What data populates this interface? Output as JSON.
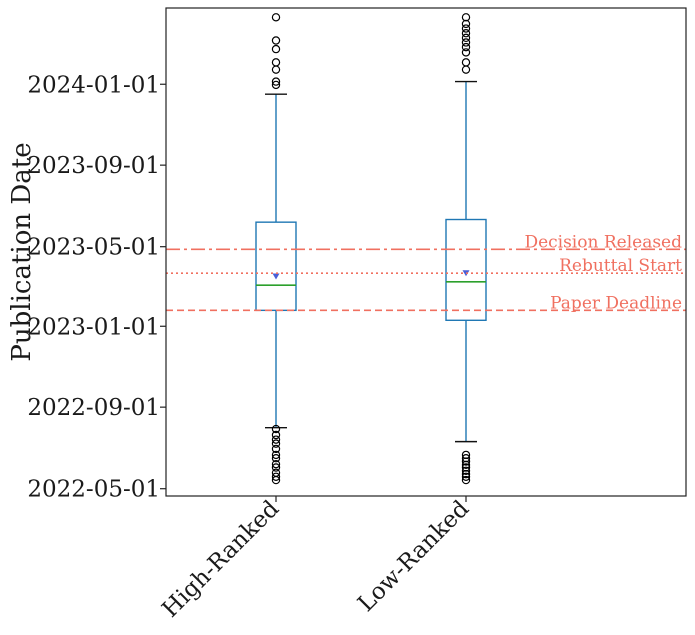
{
  "chart_data": {
    "type": "box",
    "ylabel": "Publication Date",
    "y_ticks": [
      "2022-05-01",
      "2022-09-01",
      "2023-01-01",
      "2023-05-01",
      "2023-09-01",
      "2024-01-01"
    ],
    "ylim": [
      "2022-04-20",
      "2024-04-25"
    ],
    "categories": [
      "High-Ranked",
      "Low-Ranked"
    ],
    "boxes": [
      {
        "category": "High-Ranked",
        "whisker_low": "2022-08-01",
        "q1": "2023-01-25",
        "median": "2023-03-04",
        "mean": "2023-03-17",
        "q3": "2023-06-07",
        "whisker_high": "2023-12-17",
        "outliers_low": [
          "2022-05-14",
          "2022-05-19",
          "2022-05-25",
          "2022-06-02",
          "2022-06-07",
          "2022-06-16",
          "2022-06-21",
          "2022-06-30",
          "2022-07-08",
          "2022-07-14",
          "2022-07-21",
          "2022-07-30"
        ],
        "outliers_high": [
          "2023-12-31",
          "2024-01-05",
          "2024-01-23",
          "2024-02-03",
          "2024-02-23",
          "2024-03-07",
          "2024-04-11"
        ]
      },
      {
        "category": "Low-Ranked",
        "whisker_low": "2022-07-11",
        "q1": "2023-01-10",
        "median": "2023-03-09",
        "mean": "2023-03-22",
        "q3": "2023-06-11",
        "whisker_high": "2024-01-05",
        "outliers_low": [
          "2022-05-14",
          "2022-05-19",
          "2022-05-23",
          "2022-05-28",
          "2022-06-02",
          "2022-06-06",
          "2022-06-11",
          "2022-06-16",
          "2022-06-21"
        ],
        "outliers_high": [
          "2024-01-23",
          "2024-02-03",
          "2024-02-18",
          "2024-02-26",
          "2024-03-04",
          "2024-03-11",
          "2024-03-18",
          "2024-03-25",
          "2024-04-01",
          "2024-04-11"
        ]
      }
    ],
    "reference_lines": [
      {
        "label": "Decision Released",
        "date": "2023-04-27",
        "style": "dash-dot"
      },
      {
        "label": "Rebuttal Start",
        "date": "2023-03-22",
        "style": "dotted"
      },
      {
        "label": "Paper Deadline",
        "date": "2023-01-25",
        "style": "dashed"
      }
    ],
    "colors": {
      "box": "#1f77b4",
      "median": "#2ca02c",
      "mean": "#4a5fd6",
      "reference": "#f07060",
      "outlier": "#000000"
    },
    "grid": false
  }
}
